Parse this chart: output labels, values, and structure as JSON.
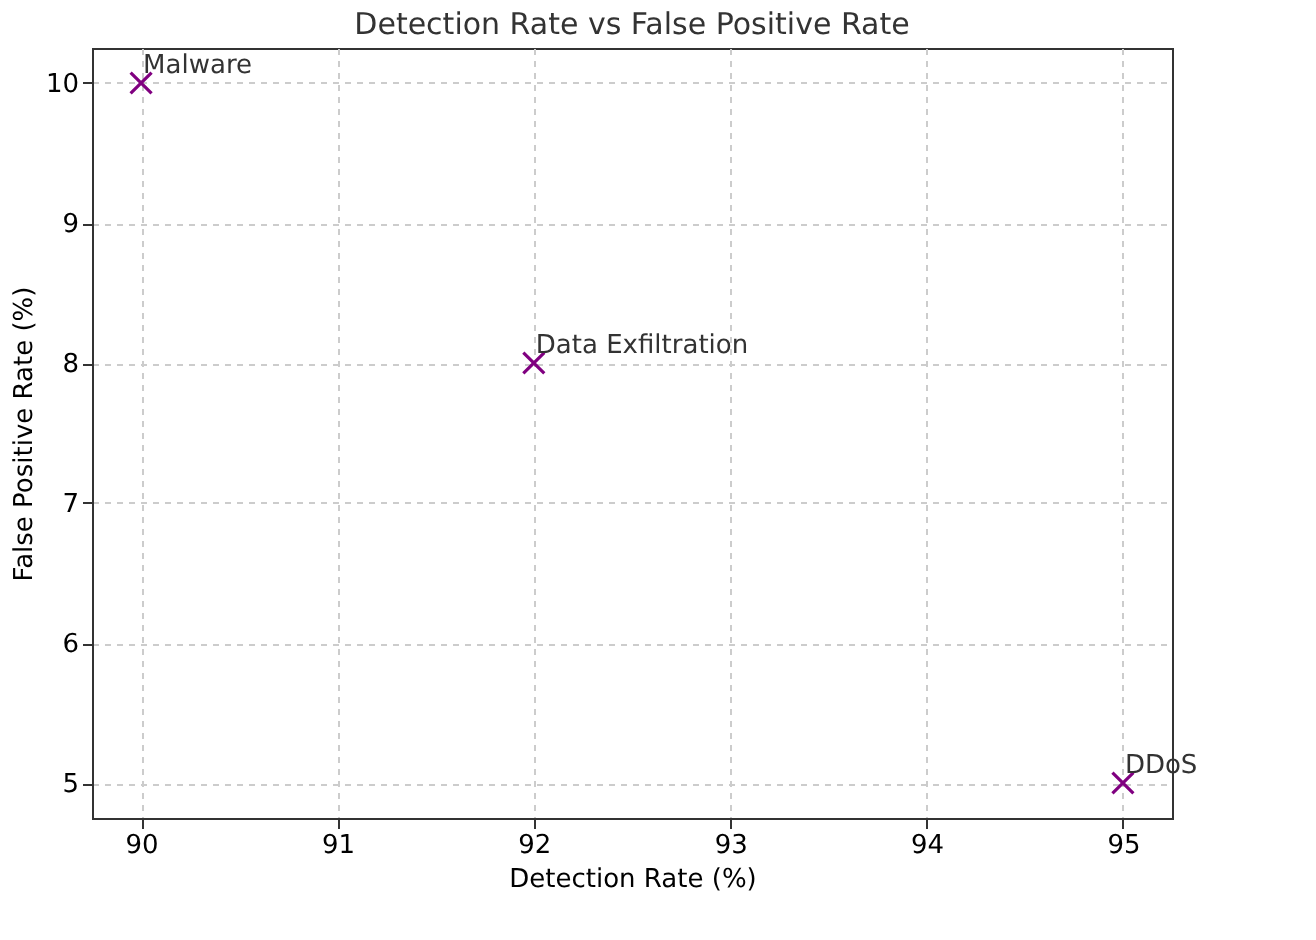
{
  "chart_data": {
    "type": "scatter",
    "title": "Detection Rate vs False Positive Rate",
    "xlabel": "Detection Rate (%)",
    "ylabel": "False Positive Rate (%)",
    "x": [
      90,
      92,
      95
    ],
    "series": [
      {
        "color": "#800080",
        "values": [
          10,
          8,
          5
        ]
      }
    ],
    "annotations": [
      {
        "text": "Malware",
        "x": 90,
        "y": 10
      },
      {
        "text": "Data Exfiltration",
        "x": 92,
        "y": 8
      },
      {
        "text": "DDoS",
        "x": 95,
        "y": 5
      }
    ],
    "xlim": [
      89.75,
      95.25
    ],
    "ylim": [
      4.75,
      10.25
    ],
    "xticks": [
      90,
      91,
      92,
      93,
      94,
      95
    ],
    "yticks": [
      5,
      6,
      7,
      8,
      9,
      10
    ],
    "grid": true,
    "marker": "cross"
  }
}
